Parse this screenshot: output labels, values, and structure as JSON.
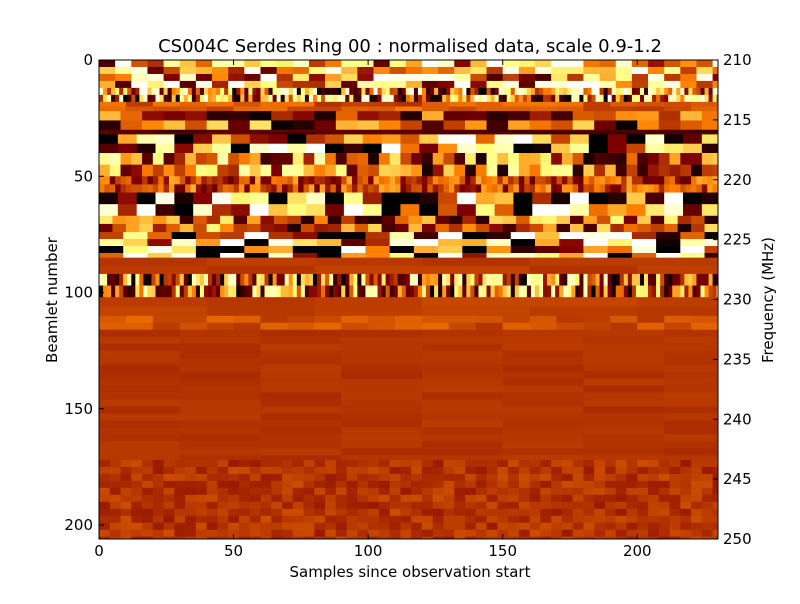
{
  "chart_data": {
    "type": "heatmap",
    "title": "CS004C Serdes Ring 00 : normalised data, scale 0.9-1.2",
    "x_label": "Samples since observation start",
    "y_label": "Beamlet number",
    "y2_label": "Frequency (MHz)",
    "xlim": [
      0,
      230
    ],
    "xticks": [
      0,
      50,
      100,
      150,
      200
    ],
    "ylim": [
      0,
      206
    ],
    "y_inverted": true,
    "yticks": [
      0,
      50,
      100,
      150,
      200
    ],
    "y2lim": [
      210,
      250
    ],
    "y2ticks": [
      210,
      215,
      220,
      225,
      230,
      235,
      240,
      245,
      250
    ],
    "colormap": "afmhot"
  }
}
